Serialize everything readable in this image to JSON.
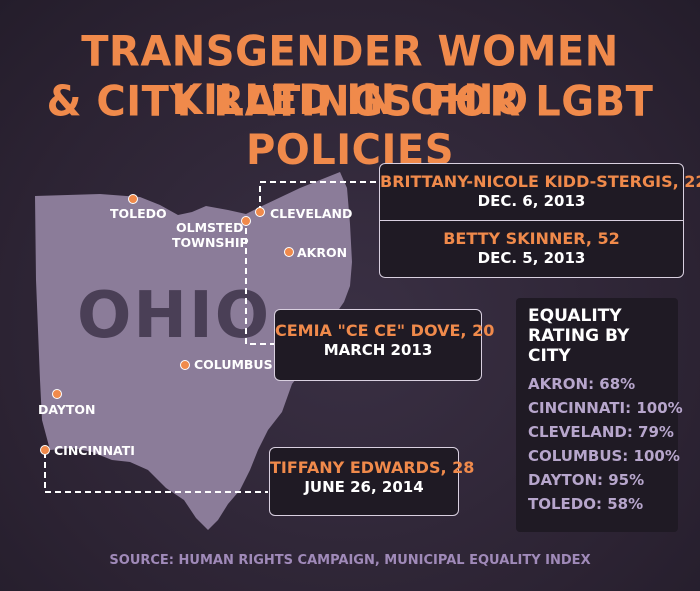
{
  "title": {
    "line1": "TRANSGENDER WOMEN KILLED IN OHIO",
    "line2": "& CITY RATINGS FOR LGBT POLICIES"
  },
  "map": {
    "state_label": "OHIO",
    "cities": {
      "toledo": "TOLEDO",
      "olmsted_line1": "OLMSTED",
      "olmsted_line2": "TOWNSHIP",
      "cleveland": "CLEVELAND",
      "akron": "AKRON",
      "columbus": "COLUMBUS",
      "dayton": "DAYTON",
      "cincinnati": "CINCINNATI"
    },
    "colors": {
      "state": "#8b7c99",
      "marker": "#f08a4b",
      "title": "#f08a4b"
    }
  },
  "victims": [
    {
      "name": "BRITTANY-NICOLE KIDD-STERGIS, 22",
      "date": "DEC. 6, 2013"
    },
    {
      "name": "BETTY SKINNER, 52",
      "date": "DEC. 5, 2013"
    },
    {
      "name": "CEMIA \"CE CE\" DOVE, 20",
      "date": "MARCH 2013"
    },
    {
      "name": "TIFFANY EDWARDS, 28",
      "date": "JUNE 26, 2014"
    }
  ],
  "ratings": {
    "heading_line1": "EQUALITY",
    "heading_line2": "RATING BY CITY",
    "items": [
      {
        "text": "AKRON: 68%"
      },
      {
        "text": "CINCINNATI: 100%"
      },
      {
        "text": "CLEVELAND: 79%"
      },
      {
        "text": "COLUMBUS: 100%"
      },
      {
        "text": "DAYTON: 95%"
      },
      {
        "text": "TOLEDO: 58%"
      }
    ]
  },
  "source": "SOURCE: HUMAN RIGHTS CAMPAIGN, MUNICIPAL EQUALITY INDEX"
}
